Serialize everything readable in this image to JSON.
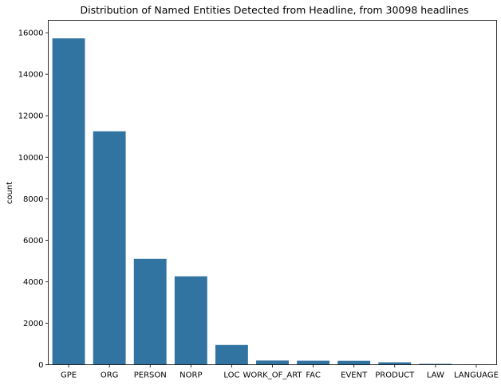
{
  "chart_data": {
    "type": "bar",
    "title": "Distribution of Named Entities Detected from Headline, from 30098 headlines",
    "xlabel": "",
    "ylabel": "count",
    "categories": [
      "GPE",
      "ORG",
      "PERSON",
      "NORP",
      "LOC",
      "WORK_OF_ART",
      "FAC",
      "EVENT",
      "PRODUCT",
      "LAW",
      "LANGUAGE"
    ],
    "values": [
      15730,
      11250,
      5100,
      4260,
      950,
      200,
      190,
      185,
      115,
      40,
      5
    ],
    "ylim": [
      0,
      16600
    ],
    "yticks": [
      0,
      2000,
      4000,
      6000,
      8000,
      10000,
      12000,
      14000,
      16000
    ],
    "grid": false,
    "bar_color": "#3274a1"
  }
}
